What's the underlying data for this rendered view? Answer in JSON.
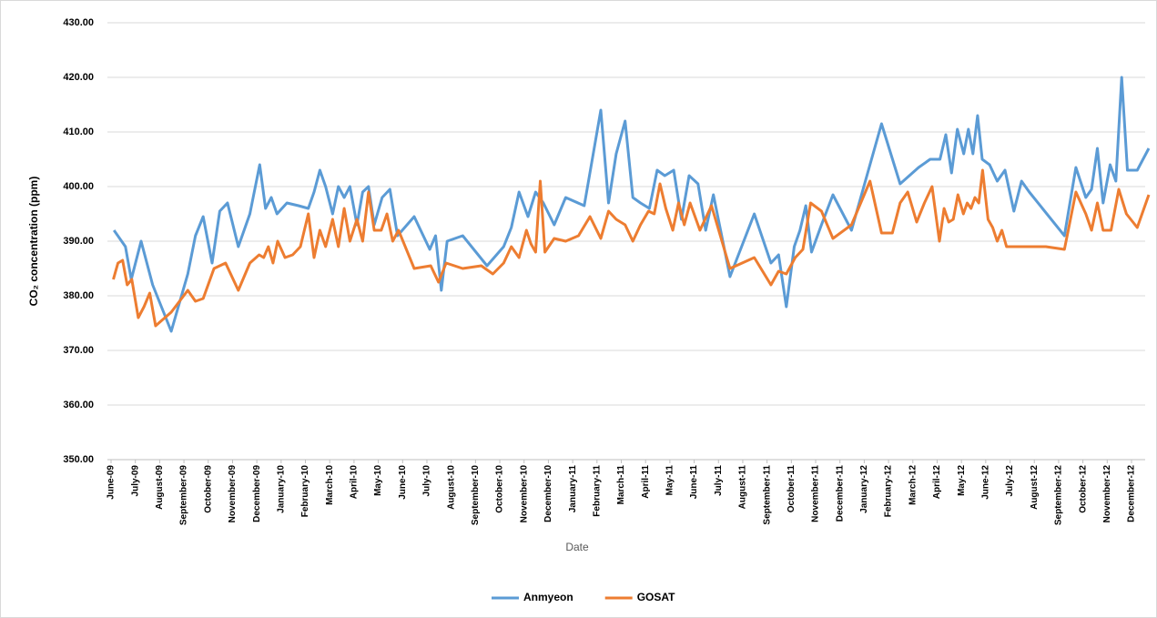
{
  "chart_data": {
    "type": "line",
    "y_label": "CO₂ concentration (ppm)",
    "x_label": "Date",
    "categories": [
      "June-09",
      "July-09",
      "August-09",
      "September-09",
      "October-09",
      "November-09",
      "December-09",
      "January-10",
      "February-10",
      "March-10",
      "April-10",
      "May-10",
      "June-10",
      "July-10",
      "August-10",
      "September-10",
      "October-10",
      "November-10",
      "December-10",
      "January-11",
      "February-11",
      "March-11",
      "April-11",
      "May-11",
      "June-11",
      "July-11",
      "August-11",
      "September-11",
      "October-11",
      "November-11",
      "December-11",
      "January-12",
      "February-12",
      "March-12",
      "April-12",
      "May-12",
      "June-12",
      "July-12",
      "August-12",
      "September-12",
      "October-12",
      "November-12",
      "December-12"
    ],
    "ylim": [
      350,
      430
    ],
    "yticks": [
      {
        "value": 350,
        "label": "350.00"
      },
      {
        "value": 360,
        "label": "360.00"
      },
      {
        "value": 370,
        "label": "370.00"
      },
      {
        "value": 380,
        "label": "380.00"
      },
      {
        "value": 390,
        "label": "390.00"
      },
      {
        "value": 400,
        "label": "400.00"
      },
      {
        "value": 410,
        "label": "410.00"
      },
      {
        "value": 420,
        "label": "420.00"
      },
      {
        "value": 430,
        "label": "430.00"
      }
    ],
    "grid": true,
    "legend": "bottom",
    "series": [
      {
        "name": "Anmyeon",
        "color": "#5b9bd5",
        "x": [
          "June-09",
          "June-09",
          "June-09",
          "June-09",
          "July-09",
          "July-09",
          "August-09",
          "September-09",
          "September-09",
          "September-09",
          "October-09",
          "October-09",
          "October-09",
          "November-09",
          "November-09",
          "December-09",
          "December-09",
          "December-09",
          "December-09",
          "January-10",
          "January-10",
          "February-10",
          "February-10",
          "February-10",
          "February-10",
          "March-10",
          "March-10",
          "March-10",
          "March-10",
          "April-10",
          "April-10",
          "April-10",
          "April-10",
          "May-10",
          "May-10",
          "May-10",
          "June-10",
          "July-10",
          "July-10",
          "July-10",
          "July-10",
          "August-10",
          "September-10",
          "October-10",
          "October-10",
          "October-10",
          "November-10",
          "November-10",
          "November-10",
          "December-10",
          "December-10",
          "January-11",
          "February-11",
          "February-11",
          "February-11",
          "March-11",
          "March-11",
          "March-11",
          "April-11",
          "April-11",
          "April-11",
          "May-11",
          "May-11",
          "May-11",
          "June-11",
          "June-11",
          "June-11",
          "July-11",
          "August-11",
          "September-11",
          "September-11",
          "September-11",
          "October-11",
          "October-11",
          "October-11",
          "October-11",
          "November-11",
          "November-11",
          "December-11",
          "January-12",
          "January-12",
          "February-12",
          "March-12",
          "March-12",
          "April-12",
          "April-12",
          "April-12",
          "April-12",
          "May-12",
          "May-12",
          "May-12",
          "May-12",
          "May-12",
          "June-12",
          "June-12",
          "June-12",
          "July-12",
          "July-12",
          "July-12",
          "September-12",
          "September-12",
          "October-12",
          "October-12",
          "October-12",
          "October-12",
          "November-12",
          "November-12",
          "November-12",
          "November-12",
          "December-12",
          "December-12"
        ],
        "values": [
          392,
          390.5,
          389,
          383,
          390,
          382,
          373.5,
          384,
          391,
          394.5,
          386,
          395.5,
          397,
          389,
          395,
          404,
          396,
          398,
          395,
          397,
          396.5,
          396,
          399,
          403,
          400,
          395,
          400,
          398,
          400,
          393,
          399,
          400,
          393,
          398,
          399.5,
          391,
          394.5,
          388.5,
          391,
          381,
          390,
          391,
          385.5,
          389,
          392.5,
          399,
          394.5,
          399,
          397,
          393,
          398,
          396.5,
          414,
          397,
          406,
          412,
          398,
          397,
          396,
          403,
          402,
          403,
          394,
          402,
          400.5,
          392,
          398.5,
          383.5,
          395,
          386,
          387.5,
          378,
          389,
          392,
          396.5,
          388,
          393,
          398.5,
          392,
          404,
          411.5,
          400.5,
          403.5,
          405,
          405,
          409.5,
          402.5,
          410.5,
          406,
          410.5,
          406,
          413,
          405,
          404,
          401,
          403,
          395.5,
          401,
          399,
          391,
          403.5,
          398,
          399.5,
          407,
          397,
          404,
          401,
          420,
          403,
          403,
          407
        ]
      },
      {
        "name": "GOSAT",
        "color": "#ed7d31",
        "x": [
          "June-09",
          "June-09",
          "June-09",
          "June-09",
          "June-09",
          "July-09",
          "July-09",
          "July-09",
          "July-09",
          "August-09",
          "September-09",
          "September-09",
          "September-09",
          "October-09",
          "October-09",
          "November-09",
          "November-09",
          "December-09",
          "December-09",
          "December-09",
          "December-09",
          "December-09",
          "January-10",
          "January-10",
          "January-10",
          "February-10",
          "February-10",
          "February-10",
          "February-10",
          "March-10",
          "March-10",
          "March-10",
          "March-10",
          "April-10",
          "April-10",
          "April-10",
          "April-10",
          "May-10",
          "May-10",
          "May-10",
          "May-10",
          "June-10",
          "July-10",
          "July-10",
          "July-10",
          "August-10",
          "September-10",
          "September-10",
          "October-10",
          "October-10",
          "October-10",
          "November-10",
          "November-10",
          "November-10",
          "November-10",
          "November-10",
          "December-10",
          "December-10",
          "January-11",
          "January-11",
          "February-11",
          "February-11",
          "February-11",
          "March-11",
          "March-11",
          "March-11",
          "April-11",
          "April-11",
          "April-11",
          "April-11",
          "May-11",
          "May-11",
          "May-11",
          "May-11",
          "June-11",
          "June-11",
          "July-11",
          "August-11",
          "September-11",
          "September-11",
          "September-11",
          "October-11",
          "October-11",
          "October-11",
          "November-11",
          "November-11",
          "December-11",
          "January-12",
          "January-12",
          "February-12",
          "February-12",
          "February-12",
          "March-12",
          "March-12",
          "March-12",
          "April-12",
          "April-12",
          "April-12",
          "April-12",
          "April-12",
          "May-12",
          "May-12",
          "May-12",
          "May-12",
          "May-12",
          "May-12",
          "June-12",
          "June-12",
          "June-12",
          "June-12",
          "June-12",
          "July-12",
          "August-12",
          "September-12",
          "September-12",
          "October-12",
          "October-12",
          "October-12",
          "October-12",
          "November-12",
          "November-12",
          "November-12",
          "December-12",
          "December-12"
        ],
        "values": [
          383,
          386,
          386.5,
          382,
          383,
          376,
          378,
          380.5,
          374.5,
          377,
          381,
          379,
          379.5,
          385,
          386,
          381,
          386,
          387.5,
          387,
          389,
          386,
          390,
          387,
          387.5,
          389,
          395,
          387,
          392,
          389,
          394,
          389,
          396,
          390,
          394,
          390,
          399,
          392,
          392,
          395,
          390,
          392,
          385,
          385.5,
          382.5,
          386,
          385,
          385.5,
          384,
          386,
          389,
          387,
          392,
          389.5,
          388,
          401,
          388,
          390.5,
          390,
          391,
          394.5,
          390.5,
          395.5,
          394,
          393,
          390,
          393,
          395.5,
          395,
          400.5,
          396,
          392,
          397,
          393,
          397,
          392,
          396.5,
          385,
          387,
          382,
          384.5,
          384,
          387,
          388.5,
          397,
          395.5,
          390.5,
          393,
          401,
          391.5,
          391.5,
          397,
          399,
          393.5,
          397,
          400,
          390,
          396,
          393.5,
          394,
          398.5,
          395,
          397,
          396,
          398,
          397,
          403,
          394,
          392.5,
          390,
          392,
          389,
          389,
          389,
          388.5,
          399,
          395,
          392,
          397,
          392,
          392,
          399.5,
          395,
          392.5,
          398.5
        ]
      }
    ]
  }
}
